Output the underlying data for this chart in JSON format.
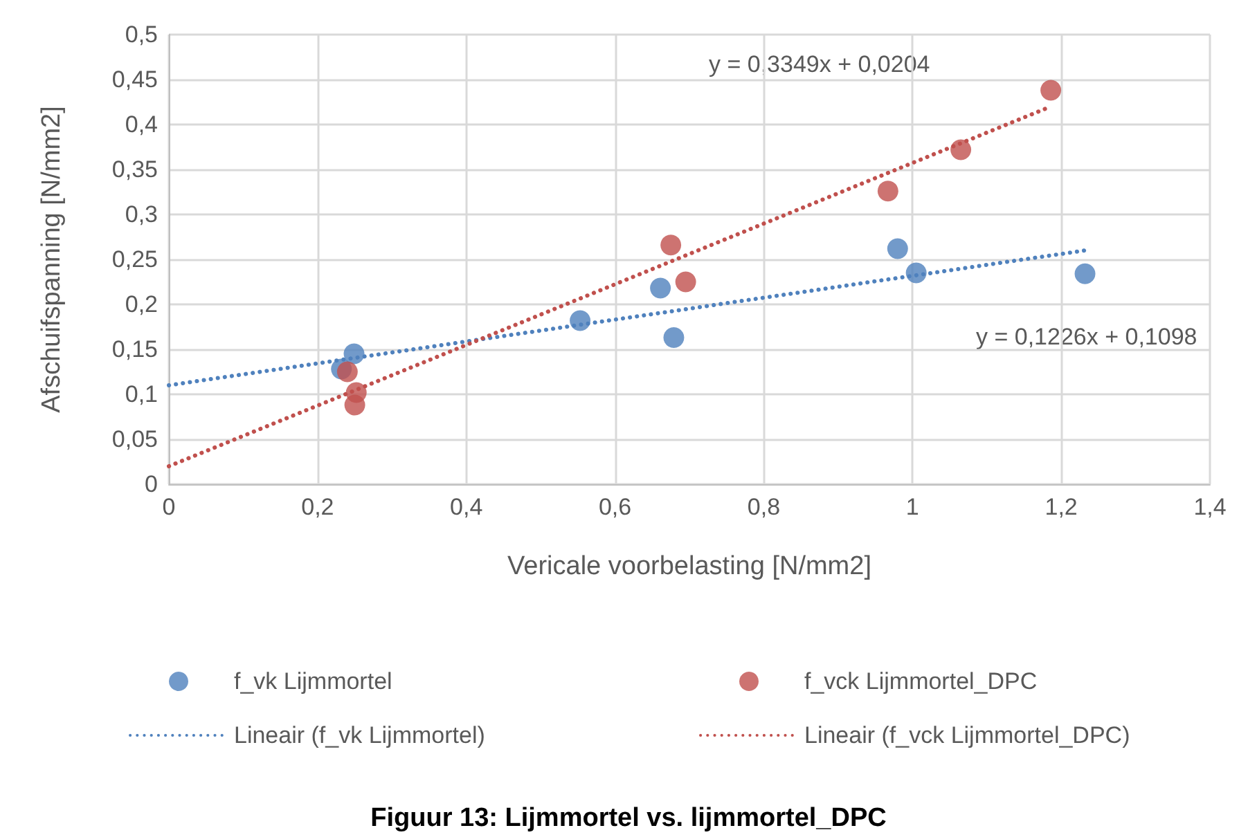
{
  "chart_data": {
    "type": "scatter",
    "xlabel": "Vericale voorbelasting [N/mm2]",
    "ylabel": "Afschuifspanning [N/mm2]",
    "annotations": [
      "y = 0,3349x + 0,0204",
      "y = 0,1226x + 0,1098",
      "Figuur 13: Lijmmortel vs. lijmmortel_DPC"
    ],
    "series": [
      {
        "name": "f_vk Lijmmortel",
        "color": "#4f81bd",
        "marker": "circle",
        "x": [
          0.232,
          0.249,
          0.553,
          0.661,
          0.679,
          0.98,
          1.005,
          1.232
        ],
        "values": [
          0.128,
          0.145,
          0.182,
          0.218,
          0.163,
          0.262,
          0.235,
          0.234
        ]
      },
      {
        "name": "f_vck Lijmmortel_DPC",
        "color": "#c0504d",
        "marker": "circle",
        "x": [
          0.24,
          0.252,
          0.25,
          0.675,
          0.695,
          0.967,
          1.065,
          1.186
        ],
        "values": [
          0.125,
          0.102,
          0.088,
          0.266,
          0.225,
          0.326,
          0.372,
          0.438
        ]
      },
      {
        "name": "Lineair (f_vk Lijmmortel)",
        "color": "#4f81bd",
        "type": "line",
        "marker": "none",
        "line_style": "dotted",
        "x": [
          0,
          1.232
        ],
        "values": [
          0.11,
          0.26
        ]
      },
      {
        "name": "Lineair (f_vck Lijmmortel_DPC)",
        "color": "#c0504d",
        "type": "line",
        "marker": "none",
        "line_style": "dotted",
        "x": [
          0,
          1.186
        ],
        "values": [
          0.02,
          0.42
        ]
      }
    ],
    "xlim": [
      0,
      1.4
    ],
    "xticks": [
      0,
      {
        "value": 0.2,
        "label": "0,2"
      },
      {
        "value": 0.4,
        "label": "0,4"
      },
      {
        "value": 0.6,
        "label": "0,6"
      },
      {
        "value": 0.8,
        "label": "0,8"
      },
      1,
      {
        "value": 1.2,
        "label": "1,2"
      },
      {
        "value": 1.4,
        "label": "1,4"
      }
    ],
    "ylim": [
      0,
      0.5
    ],
    "yticks": [
      0,
      {
        "value": 0.05,
        "label": "0,05"
      },
      {
        "value": 0.1,
        "label": "0,1"
      },
      {
        "value": 0.15,
        "label": "0,15"
      },
      {
        "value": 0.2,
        "label": "0,2"
      },
      {
        "value": 0.25,
        "label": "0,25"
      },
      {
        "value": 0.3,
        "label": "0,3"
      },
      {
        "value": 0.35,
        "label": "0,35"
      },
      {
        "value": 0.4,
        "label": "0,4"
      },
      {
        "value": 0.45,
        "label": "0,45"
      },
      {
        "value": 0.5,
        "label": "0,5"
      }
    ],
    "grid": true,
    "legend": "bottom"
  }
}
